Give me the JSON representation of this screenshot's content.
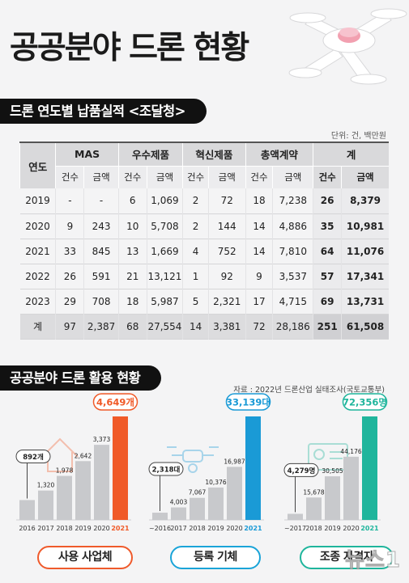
{
  "header": {
    "title": "공공분야 드론 현황"
  },
  "section1": {
    "title": "드론 연도별 납품실적 <조달청>",
    "unit": "단위: 건, 백만원"
  },
  "section2": {
    "title": "공공분야 드론 활용 현황",
    "source": "자료 : 2022년 드론산업 실태조사(국토교통부)"
  },
  "table": {
    "year_header": "연도",
    "groups": [
      "MAS",
      "우수제품",
      "혁신제품",
      "총액계약",
      "계"
    ],
    "sub_count": "건수",
    "sub_amount": "금액",
    "rows": [
      {
        "year": "2019",
        "cells": [
          "-",
          "-",
          "6",
          "1,069",
          "2",
          "72",
          "18",
          "7,238",
          "26",
          "8,379"
        ]
      },
      {
        "year": "2020",
        "cells": [
          "9",
          "243",
          "10",
          "5,708",
          "2",
          "144",
          "14",
          "4,886",
          "35",
          "10,981"
        ]
      },
      {
        "year": "2021",
        "cells": [
          "33",
          "845",
          "13",
          "1,669",
          "4",
          "752",
          "14",
          "7,810",
          "64",
          "11,076"
        ]
      },
      {
        "year": "2022",
        "cells": [
          "26",
          "591",
          "21",
          "13,121",
          "1",
          "92",
          "9",
          "3,537",
          "57",
          "17,341"
        ]
      },
      {
        "year": "2023",
        "cells": [
          "29",
          "708",
          "18",
          "5,987",
          "5",
          "2,321",
          "17",
          "4,715",
          "69",
          "13,731"
        ]
      },
      {
        "year": "계",
        "cells": [
          "97",
          "2,387",
          "68",
          "27,554",
          "14",
          "3,381",
          "72",
          "28,186",
          "251",
          "61,508"
        ]
      }
    ]
  },
  "chart_data": [
    {
      "type": "bar",
      "categories": [
        "2016",
        "2017",
        "2018",
        "2019",
        "2020",
        "2021"
      ],
      "values": [
        892,
        1320,
        1978,
        2642,
        3373,
        4649
      ],
      "labels": [
        "892개",
        "1,320",
        "1,978",
        "2,642",
        "3,373",
        "4,649개"
      ],
      "ylim": [
        0,
        4649
      ],
      "highlight_color": "#f05a28",
      "caption": "사용 사업체"
    },
    {
      "type": "bar",
      "categories": [
        "~2016",
        "2017",
        "2018",
        "2019",
        "2020",
        "2021"
      ],
      "values": [
        2318,
        4003,
        7067,
        10376,
        16987,
        33139
      ],
      "labels": [
        "2,318대",
        "4,003",
        "7,067",
        "10,376",
        "16,987",
        "33,139대"
      ],
      "ylim": [
        0,
        33139
      ],
      "highlight_color": "#1a9ad6",
      "caption": "등록 기체"
    },
    {
      "type": "bar",
      "categories": [
        "~2017",
        "2018",
        "2019",
        "2020",
        "2021"
      ],
      "values": [
        4279,
        15678,
        30505,
        44176,
        72356
      ],
      "labels": [
        "4,279명",
        "15,678",
        "30,505",
        "44,176",
        "72,356명"
      ],
      "ylim": [
        0,
        72356
      ],
      "highlight_color": "#1fb59c",
      "caption": "조종 자격자"
    }
  ],
  "watermark": "뉴스1"
}
